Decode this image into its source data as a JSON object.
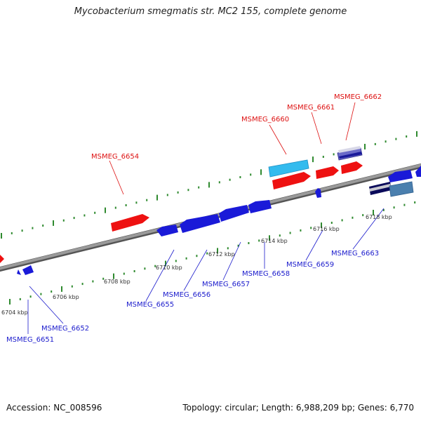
{
  "title": "Mycobacterium smegmatis str. MC2 155, complete genome",
  "footer": {
    "accession": "Accession: NC_008596",
    "summary": "Topology: circular; Length: 6,988,209 bp; Genes: 6,770"
  },
  "colors": {
    "backbone": "#8a8a8a",
    "tick": "#2f8a2f",
    "forward_gene": "#ee1111",
    "reverse_gene": "#1a1ad8",
    "forward_label": "#dd1111",
    "reverse_label": "#1a1acc",
    "highlight": "#33bbee",
    "steel": "#4a7fae",
    "ruler_text": "#333333"
  },
  "ruler_labels": [
    "6704 kbp",
    "6706 kbp",
    "6708 kbp",
    "6710 kbp",
    "6712 kbp",
    "6714 kbp",
    "6716 kbp",
    "6718 kbp"
  ],
  "gene_labels": {
    "forward": [
      "MSMEG_6654",
      "MSMEG_6660",
      "MSMEG_6661",
      "MSMEG_6662"
    ],
    "reverse": [
      "MSMEG_6651",
      "MSMEG_6652",
      "MSMEG_6655",
      "MSMEG_6656",
      "MSMEG_6657",
      "MSMEG_6658",
      "MSMEG_6659",
      "MSMEG_6663"
    ]
  }
}
